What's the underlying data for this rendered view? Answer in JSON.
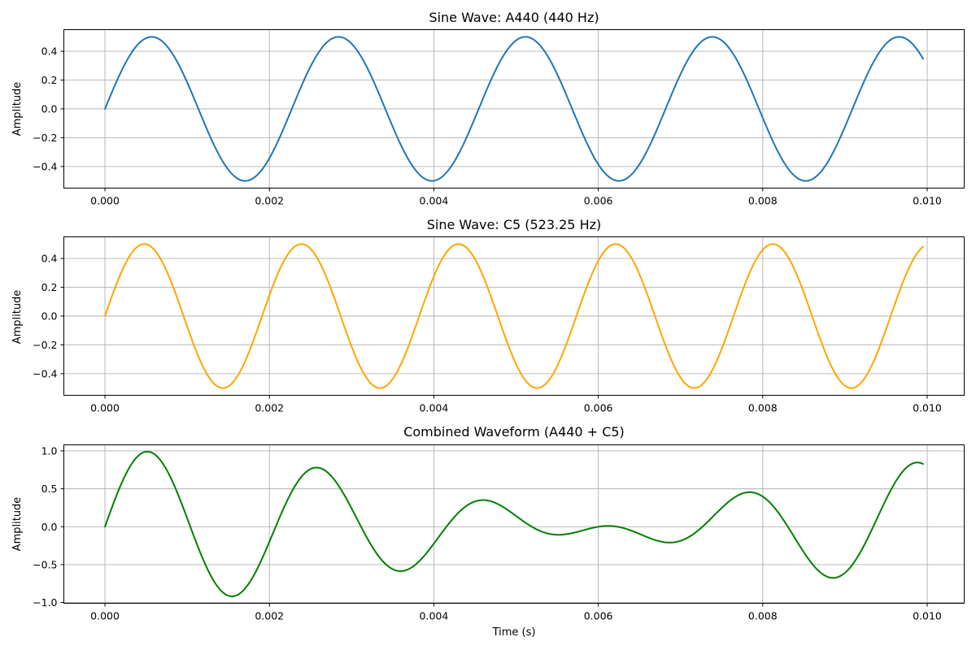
{
  "chart_data": [
    {
      "type": "line",
      "title": "Sine Wave: A440 (440 Hz)",
      "xlabel": "",
      "ylabel": "Amplitude",
      "xlim": [
        -0.0005,
        0.01045
      ],
      "ylim": [
        -0.55,
        0.55
      ],
      "xticks": [
        0.0,
        0.002,
        0.004,
        0.006,
        0.008,
        0.01
      ],
      "xtick_labels": [
        "0.000",
        "0.002",
        "0.004",
        "0.006",
        "0.008",
        "0.010"
      ],
      "yticks": [
        -0.4,
        -0.2,
        0.0,
        0.2,
        0.4
      ],
      "ytick_labels": [
        "−0.4",
        "−0.2",
        "0.0",
        "0.2",
        "0.4"
      ],
      "grid": true,
      "series": [
        {
          "color": "#1f77b4",
          "components": [
            {
              "amplitude": 0.5,
              "frequency_hz": 440
            }
          ],
          "x_start": 0.0,
          "x_end": 0.00995
        }
      ]
    },
    {
      "type": "line",
      "title": "Sine Wave: C5 (523.25 Hz)",
      "xlabel": "",
      "ylabel": "Amplitude",
      "xlim": [
        -0.0005,
        0.01045
      ],
      "ylim": [
        -0.55,
        0.55
      ],
      "xticks": [
        0.0,
        0.002,
        0.004,
        0.006,
        0.008,
        0.01
      ],
      "xtick_labels": [
        "0.000",
        "0.002",
        "0.004",
        "0.006",
        "0.008",
        "0.010"
      ],
      "yticks": [
        -0.4,
        -0.2,
        0.0,
        0.2,
        0.4
      ],
      "ytick_labels": [
        "−0.4",
        "−0.2",
        "0.0",
        "0.2",
        "0.4"
      ],
      "grid": true,
      "series": [
        {
          "color": "#ffa500",
          "components": [
            {
              "amplitude": 0.5,
              "frequency_hz": 523.25
            }
          ],
          "x_start": 0.0,
          "x_end": 0.00995
        }
      ]
    },
    {
      "type": "line",
      "title": "Combined Waveform (A440 + C5)",
      "xlabel": "Time (s)",
      "ylabel": "Amplitude",
      "xlim": [
        -0.0005,
        0.01045
      ],
      "ylim": [
        -1.01,
        1.08
      ],
      "xticks": [
        0.0,
        0.002,
        0.004,
        0.006,
        0.008,
        0.01
      ],
      "xtick_labels": [
        "0.000",
        "0.002",
        "0.004",
        "0.006",
        "0.008",
        "0.010"
      ],
      "yticks": [
        -1.0,
        -0.5,
        0.0,
        0.5,
        1.0
      ],
      "ytick_labels": [
        "−1.0",
        "−0.5",
        "0.0",
        "0.5",
        "1.0"
      ],
      "grid": true,
      "series": [
        {
          "color": "#008000",
          "components": [
            {
              "amplitude": 0.5,
              "frequency_hz": 440
            },
            {
              "amplitude": 0.5,
              "frequency_hz": 523.25
            }
          ],
          "x_start": 0.0,
          "x_end": 0.00995
        }
      ]
    }
  ]
}
